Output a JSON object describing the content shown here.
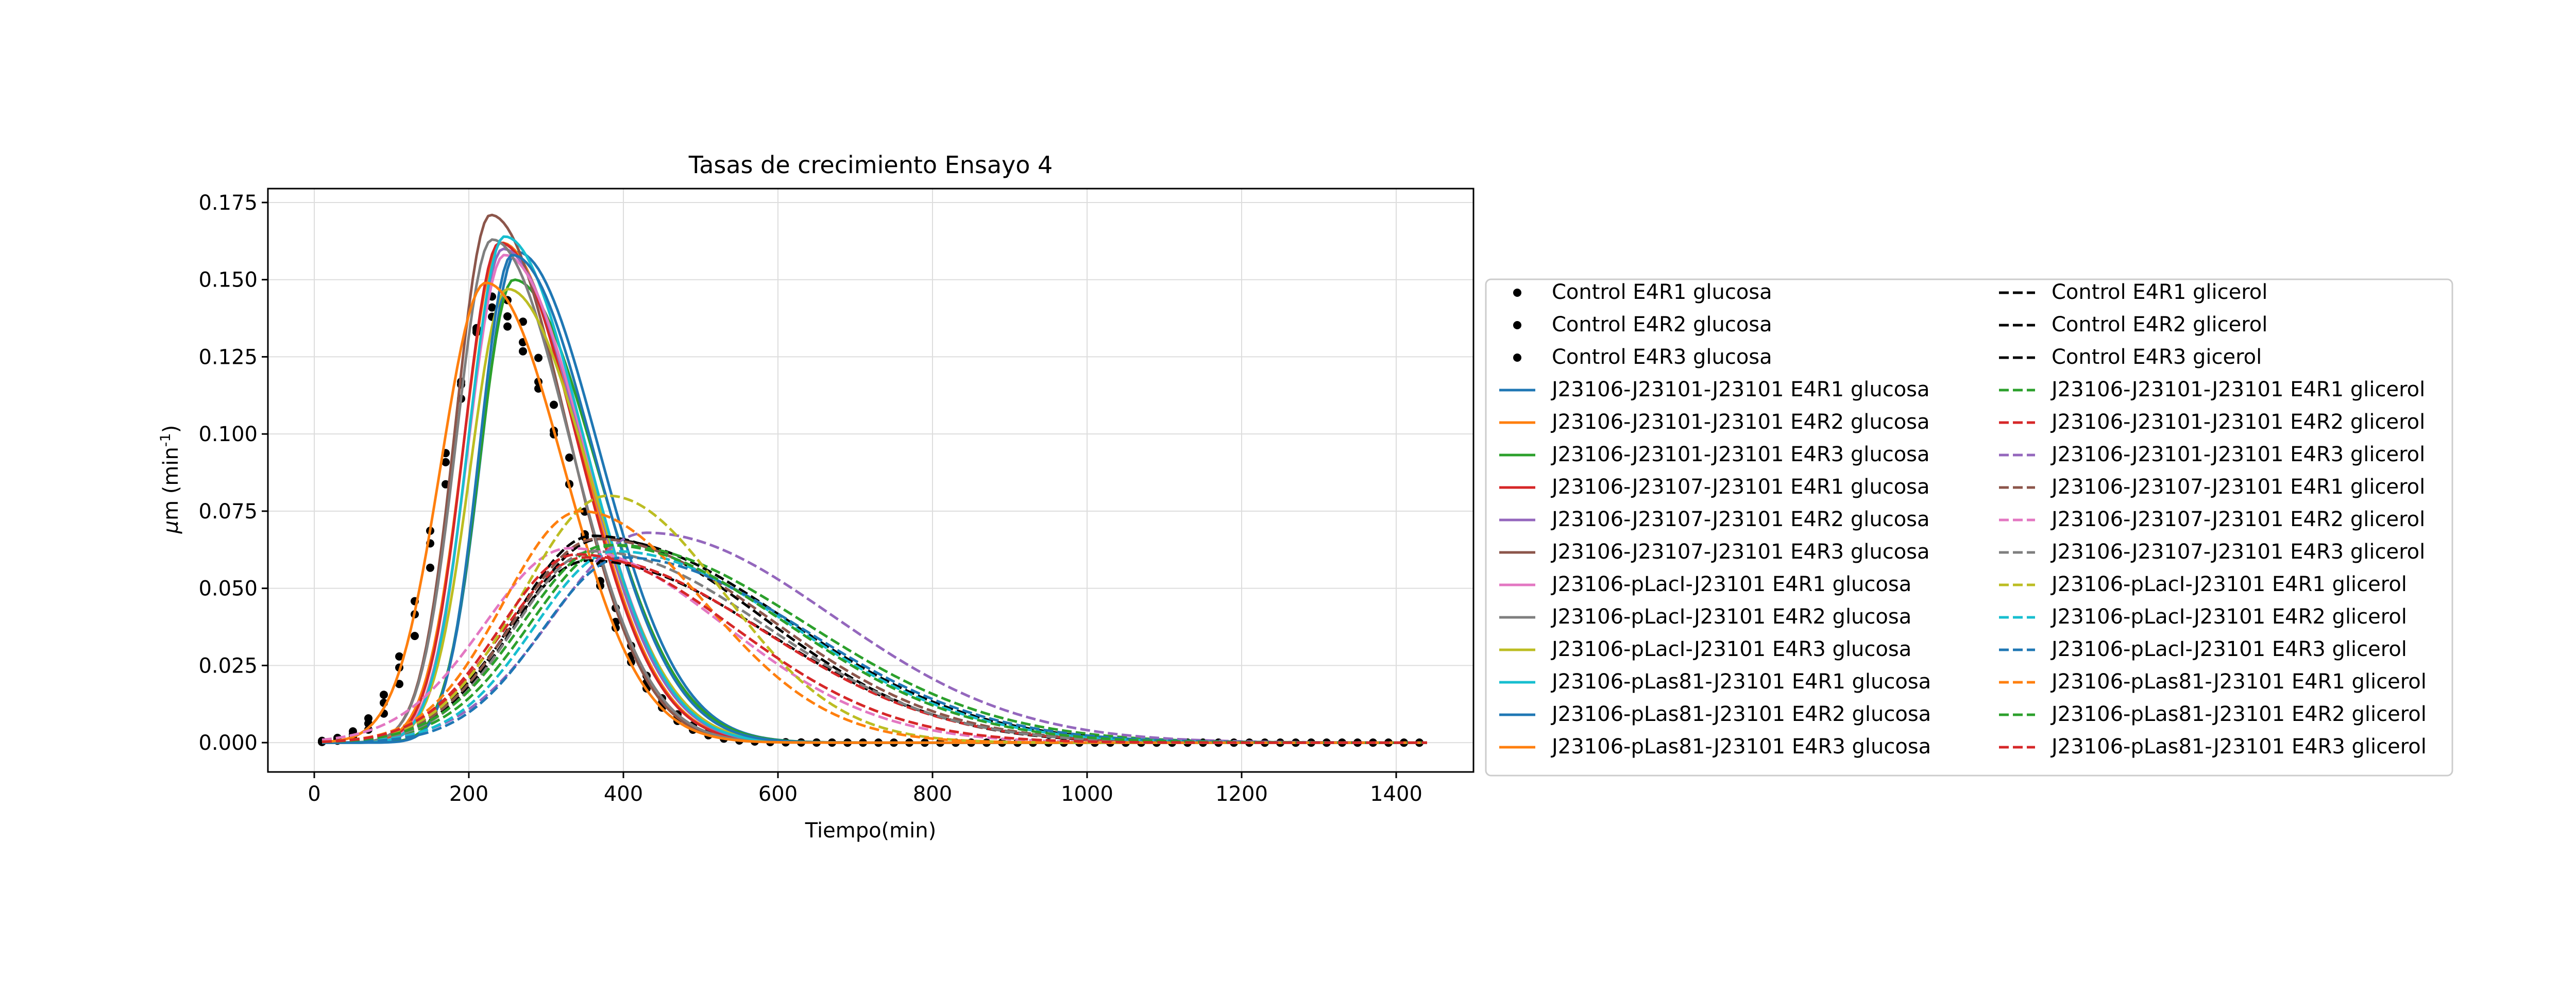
{
  "chart_data": {
    "type": "line",
    "title": "Tasas de crecimiento Ensayo 4",
    "xlabel": "Tiempo(min)",
    "ylabel": "μm (min⁻¹)",
    "ylabel_mu": "μ",
    "ylabel_rest": "m (min",
    "ylabel_sup": "-1",
    "ylabel_close": ")",
    "xlim": [
      -60,
      1500
    ],
    "ylim": [
      -0.0095,
      0.1795
    ],
    "xticks": [
      0,
      200,
      400,
      600,
      800,
      1000,
      1200,
      1400
    ],
    "yticks": [
      0.0,
      0.025,
      0.05,
      0.075,
      0.1,
      0.125,
      0.15,
      0.175
    ],
    "xtick_labels": [
      "0",
      "200",
      "400",
      "600",
      "800",
      "1000",
      "1200",
      "1400"
    ],
    "ytick_labels": [
      "0.000",
      "0.025",
      "0.050",
      "0.075",
      "0.100",
      "0.125",
      "0.150",
      "0.175"
    ],
    "grid": true,
    "legend_position": "right",
    "legend_columns": 2,
    "series": [
      {
        "name": "Control E4R1 glucosa",
        "color": "#000000",
        "style": "points",
        "peak_x": 235,
        "peak_y": 0.145,
        "sl": 62,
        "sr": 100
      },
      {
        "name": "Control E4R2 glucosa",
        "color": "#000000",
        "style": "points",
        "peak_x": 230,
        "peak_y": 0.141,
        "sl": 64,
        "sr": 98
      },
      {
        "name": "Control E4R3 glucosa",
        "color": "#000000",
        "style": "points",
        "peak_x": 228,
        "peak_y": 0.138,
        "sl": 66,
        "sr": 102
      },
      {
        "name": "J23106-J23101-J23101 E4R1 glucosa",
        "color": "#1f77b4",
        "style": "solid",
        "peak_x": 262,
        "peak_y": 0.159,
        "sl": 45,
        "sr": 105
      },
      {
        "name": "J23106-J23101-J23101 E4R2 glucosa",
        "color": "#ff7f0e",
        "style": "solid",
        "peak_x": 242,
        "peak_y": 0.162,
        "sl": 48,
        "sr": 100
      },
      {
        "name": "J23106-J23101-J23101 E4R3 glucosa",
        "color": "#2ca02c",
        "style": "solid",
        "peak_x": 258,
        "peak_y": 0.15,
        "sl": 44,
        "sr": 106
      },
      {
        "name": "J23106-J23107-J23101 E4R1 glucosa",
        "color": "#d62728",
        "style": "solid",
        "peak_x": 240,
        "peak_y": 0.162,
        "sl": 46,
        "sr": 100
      },
      {
        "name": "J23106-J23107-J23101 E4R2 glucosa",
        "color": "#9467bd",
        "style": "solid",
        "peak_x": 244,
        "peak_y": 0.16,
        "sl": 45,
        "sr": 102
      },
      {
        "name": "J23106-J23107-J23101 E4R3 glucosa",
        "color": "#8c564b",
        "style": "solid",
        "peak_x": 228,
        "peak_y": 0.171,
        "sl": 45,
        "sr": 98
      },
      {
        "name": "J23106-pLacI-J23101 E4R1 glucosa",
        "color": "#e377c2",
        "style": "solid",
        "peak_x": 246,
        "peak_y": 0.158,
        "sl": 47,
        "sr": 104
      },
      {
        "name": "J23106-pLacI-J23101 E4R2 glucosa",
        "color": "#7f7f7f",
        "style": "solid",
        "peak_x": 230,
        "peak_y": 0.163,
        "sl": 46,
        "sr": 100
      },
      {
        "name": "J23106-pLacI-J23101 E4R3 glucosa",
        "color": "#bcbd22",
        "style": "solid",
        "peak_x": 250,
        "peak_y": 0.147,
        "sl": 48,
        "sr": 104
      },
      {
        "name": "J23106-pLas81-J23101 E4R1 glucosa",
        "color": "#17becf",
        "style": "solid",
        "peak_x": 246,
        "peak_y": 0.164,
        "sl": 46,
        "sr": 102
      },
      {
        "name": "J23106-pLas81-J23101 E4R2 glucosa",
        "color": "#1f77b4",
        "style": "solid",
        "peak_x": 256,
        "peak_y": 0.158,
        "sl": 42,
        "sr": 104
      },
      {
        "name": "J23106-pLas81-J23101 E4R3 glucosa",
        "color": "#ff7f0e",
        "style": "solid",
        "peak_x": 222,
        "peak_y": 0.149,
        "sl": 58,
        "sr": 100
      },
      {
        "name": "Control E4R1 glicerol",
        "color": "#000000",
        "style": "dashed",
        "peak_x": 370,
        "peak_y": 0.066,
        "sl": 105,
        "sr": 240
      },
      {
        "name": "Control E4R2 glicerol",
        "color": "#000000",
        "style": "dashed",
        "peak_x": 355,
        "peak_y": 0.059,
        "sl": 105,
        "sr": 230
      },
      {
        "name": "Control E4R3 gicerol",
        "color": "#000000",
        "style": "dashed",
        "peak_x": 360,
        "peak_y": 0.067,
        "sl": 100,
        "sr": 220
      },
      {
        "name": "J23106-J23101-J23101 E4R1 glicerol",
        "color": "#2ca02c",
        "style": "dashed",
        "peak_x": 390,
        "peak_y": 0.064,
        "sl": 110,
        "sr": 245
      },
      {
        "name": "J23106-J23101-J23101 E4R2 glicerol",
        "color": "#d62728",
        "style": "dashed",
        "peak_x": 350,
        "peak_y": 0.06,
        "sl": 105,
        "sr": 230
      },
      {
        "name": "J23106-J23101-J23101 E4R3 glicerol",
        "color": "#9467bd",
        "style": "dashed",
        "peak_x": 430,
        "peak_y": 0.068,
        "sl": 120,
        "sr": 240
      },
      {
        "name": "J23106-J23107-J23101 E4R1 glicerol",
        "color": "#8c564b",
        "style": "dashed",
        "peak_x": 365,
        "peak_y": 0.066,
        "sl": 105,
        "sr": 225
      },
      {
        "name": "J23106-J23107-J23101 E4R2 glicerol",
        "color": "#e377c2",
        "style": "dashed",
        "peak_x": 330,
        "peak_y": 0.063,
        "sl": 110,
        "sr": 200
      },
      {
        "name": "J23106-J23107-J23101 E4R3 glicerol",
        "color": "#7f7f7f",
        "style": "dashed",
        "peak_x": 360,
        "peak_y": 0.062,
        "sl": 100,
        "sr": 225
      },
      {
        "name": "J23106-pLacI-J23101 E4R1 glicerol",
        "color": "#bcbd22",
        "style": "dashed",
        "peak_x": 380,
        "peak_y": 0.08,
        "sl": 110,
        "sr": 150
      },
      {
        "name": "J23106-pLacI-J23101 E4R2 glicerol",
        "color": "#17becf",
        "style": "dashed",
        "peak_x": 390,
        "peak_y": 0.062,
        "sl": 105,
        "sr": 230
      },
      {
        "name": "J23106-pLacI-J23101 E4R3 glicerol",
        "color": "#1f77b4",
        "style": "dashed",
        "peak_x": 400,
        "peak_y": 0.06,
        "sl": 105,
        "sr": 235
      },
      {
        "name": "J23106-pLas81-J23101 E4R1 glicerol",
        "color": "#ff7f0e",
        "style": "dashed",
        "peak_x": 345,
        "peak_y": 0.075,
        "sl": 100,
        "sr": 160
      },
      {
        "name": "J23106-pLas81-J23101 E4R2 glicerol",
        "color": "#2ca02c",
        "style": "dashed",
        "peak_x": 380,
        "peak_y": 0.064,
        "sl": 110,
        "sr": 230
      },
      {
        "name": "J23106-pLas81-J23101 E4R3 glicerol",
        "color": "#d62728",
        "style": "dashed",
        "peak_x": 340,
        "peak_y": 0.061,
        "sl": 100,
        "sr": 205
      }
    ]
  }
}
